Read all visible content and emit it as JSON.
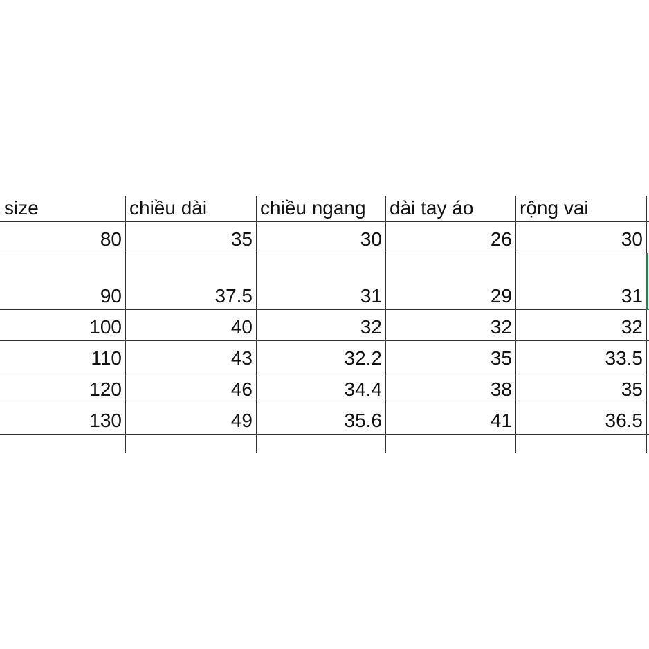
{
  "table": {
    "headers": [
      "size",
      "chiều dài",
      "chiều ngang",
      "dài tay áo",
      "rộng vai"
    ],
    "rows": [
      [
        "80",
        "35",
        "30",
        "26",
        "30"
      ],
      [
        "90",
        "37.5",
        "31",
        "29",
        "31"
      ],
      [
        "100",
        "40",
        "32",
        "32",
        "32"
      ],
      [
        "110",
        "43",
        "32.2",
        "35",
        "33.5"
      ],
      [
        "120",
        "46",
        "34.4",
        "38",
        "35"
      ],
      [
        "130",
        "49",
        "35.6",
        "41",
        "36.5"
      ]
    ]
  },
  "colors": {
    "grid": "#333333",
    "selection": "#2e7d4f"
  }
}
